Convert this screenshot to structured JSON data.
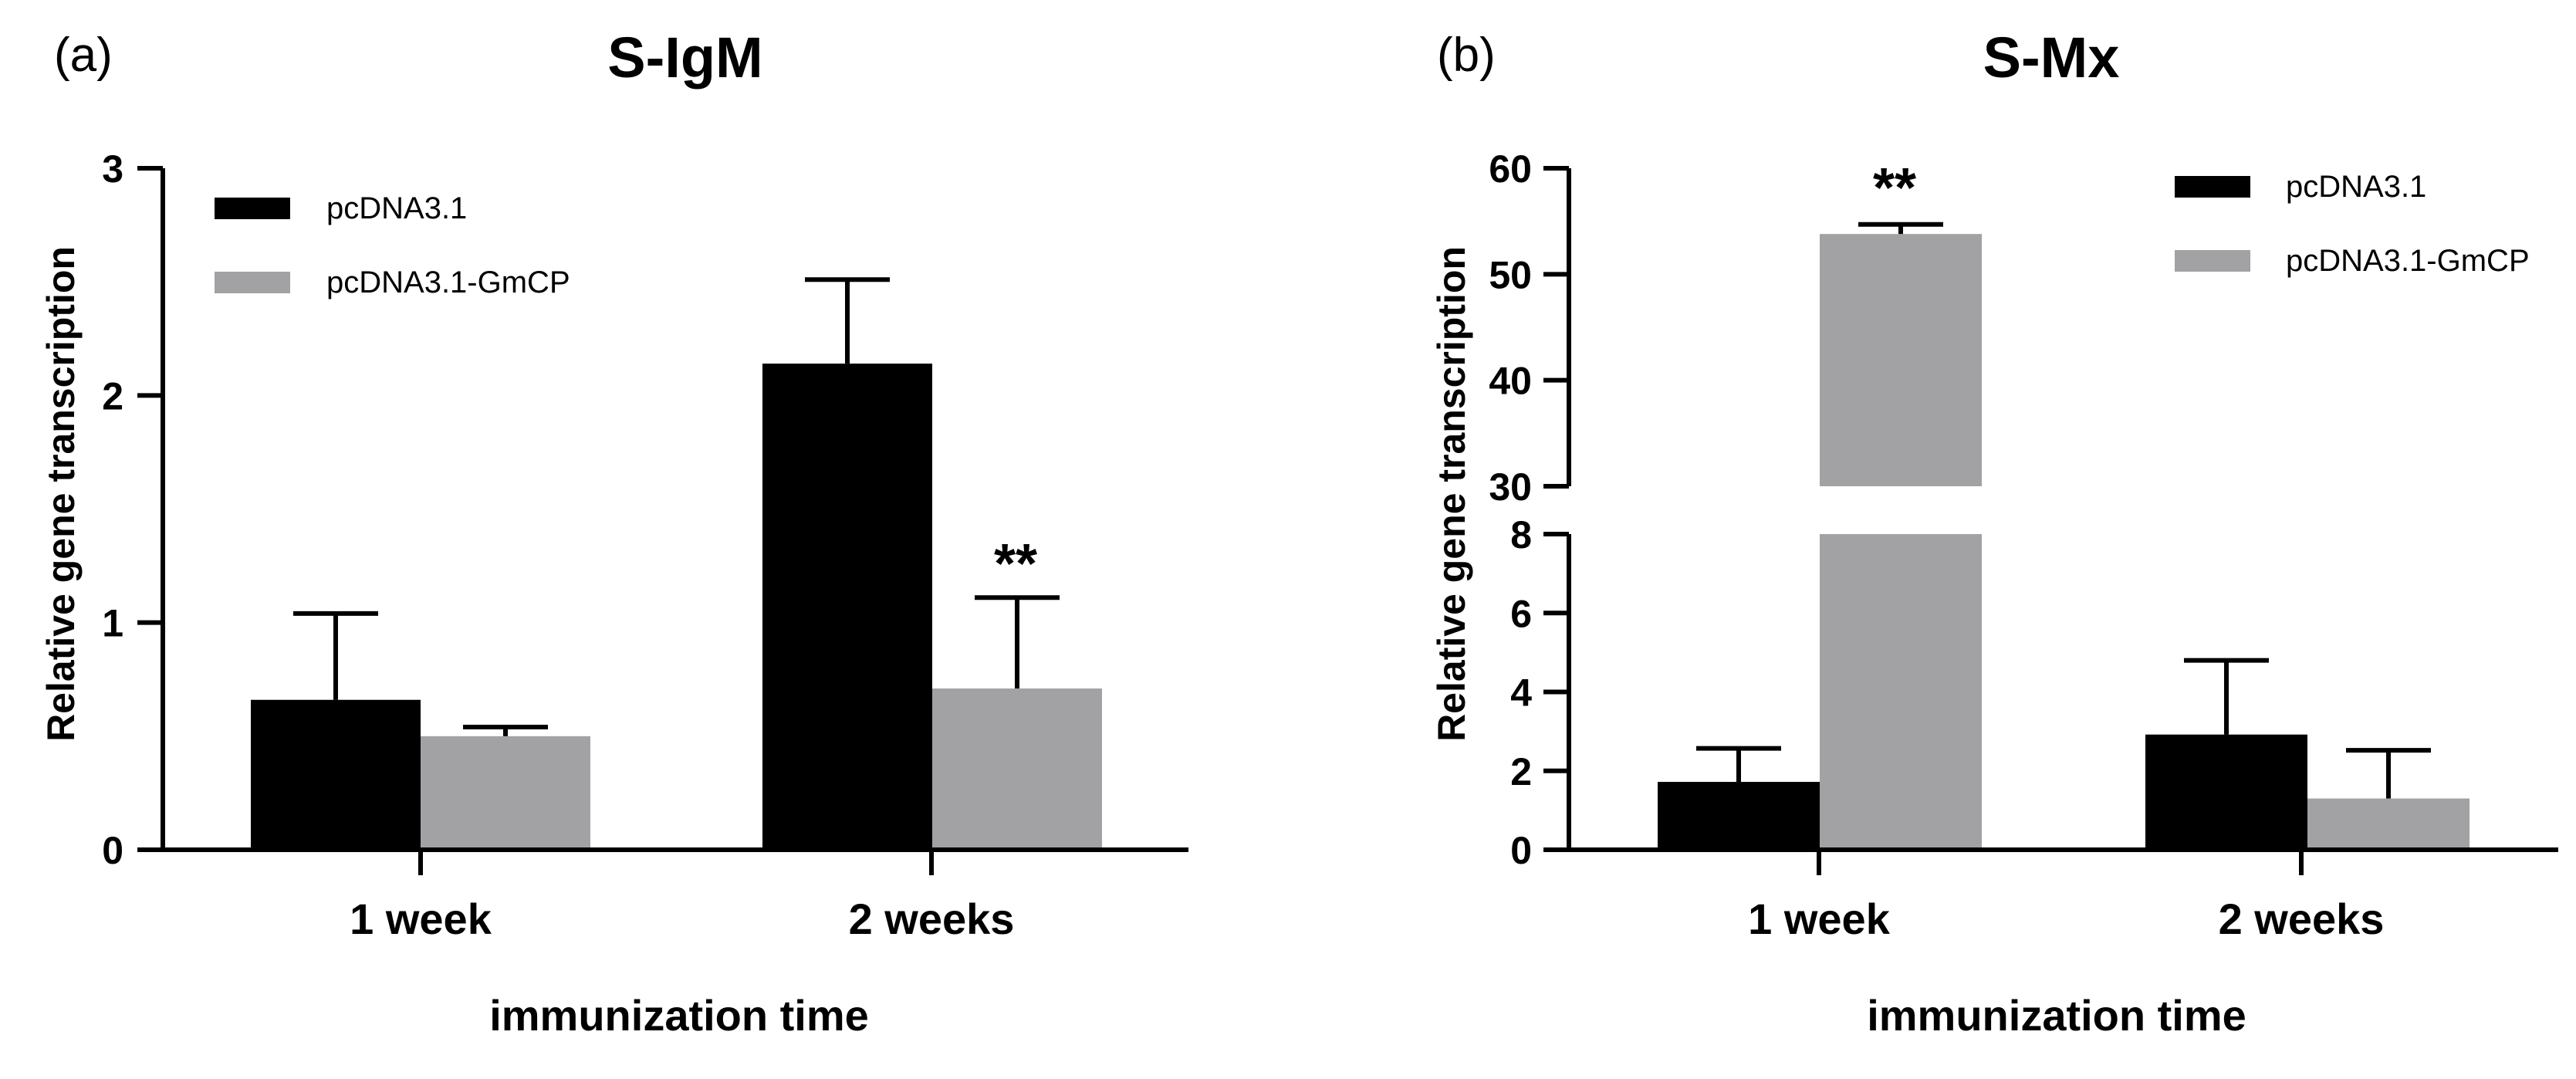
{
  "colors": {
    "pcDNA3.1": "#000000",
    "pcDNA3.1-GmCP": "#a2a2a5",
    "axis": "#000000"
  },
  "chart_data": [
    {
      "type": "bar",
      "panel_label": "(a)",
      "title": "S-IgM",
      "xlabel": "immunization time",
      "ylabel": "Relative gene transcription",
      "categories": [
        "1 week",
        "2 weeks"
      ],
      "ylim": [
        0,
        3
      ],
      "yticks": [
        "0",
        "1",
        "2",
        "3"
      ],
      "series": [
        {
          "name": "pcDNA3.1",
          "values": [
            0.66,
            2.14
          ],
          "errors": [
            0.38,
            0.37
          ]
        },
        {
          "name": "pcDNA3.1-GmCP",
          "values": [
            0.5,
            0.71
          ],
          "errors": [
            0.04,
            0.4
          ]
        }
      ],
      "annotations": [
        {
          "text": "**",
          "category": "2 weeks",
          "series": "pcDNA3.1-GmCP"
        }
      ],
      "legend": "top-left"
    },
    {
      "type": "bar",
      "panel_label": "(b)",
      "title": "S-Mx",
      "xlabel": "immunization time",
      "ylabel": "Relative gene transcription",
      "categories": [
        "1 week",
        "2 weeks"
      ],
      "axis_break": {
        "lower": [
          0,
          8
        ],
        "upper": [
          30,
          60
        ]
      },
      "yticks_lower": [
        "0",
        "2",
        "4",
        "6",
        "8"
      ],
      "yticks_upper": [
        "30",
        "40",
        "50",
        "60"
      ],
      "series": [
        {
          "name": "pcDNA3.1",
          "values": [
            1.72,
            2.92
          ],
          "errors": [
            0.85,
            1.88
          ]
        },
        {
          "name": "pcDNA3.1-GmCP",
          "values": [
            53.8,
            1.3
          ],
          "errors": [
            0.9,
            1.22
          ]
        }
      ],
      "annotations": [
        {
          "text": "**",
          "category": "1 week",
          "series": "pcDNA3.1-GmCP"
        }
      ],
      "legend": "top-right"
    }
  ]
}
